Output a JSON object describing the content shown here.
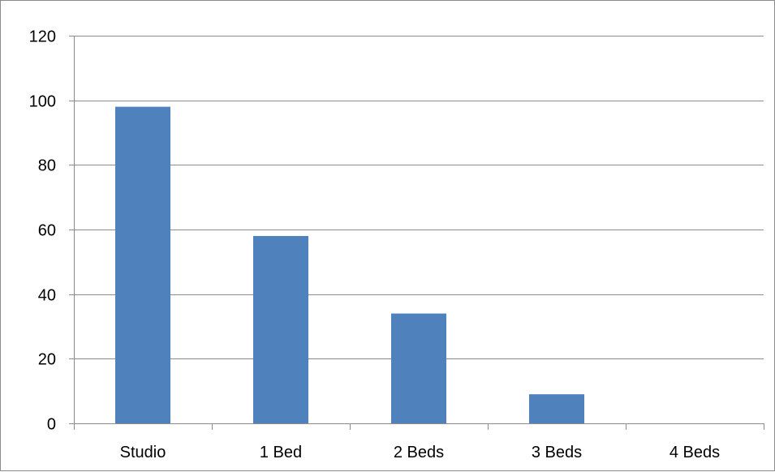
{
  "chart_data": {
    "type": "bar",
    "title": "",
    "xlabel": "",
    "ylabel": "",
    "categories": [
      "Studio",
      "1 Bed",
      "2 Beds",
      "3 Beds",
      "4 Beds"
    ],
    "values": [
      98,
      58,
      34,
      9,
      0
    ],
    "ylim": [
      0,
      120
    ],
    "yticks": [
      0,
      20,
      40,
      60,
      80,
      100,
      120
    ],
    "grid": true,
    "legend": "none",
    "bar_color": "#4f81bd",
    "gridline_color": "#8c8c8c"
  }
}
